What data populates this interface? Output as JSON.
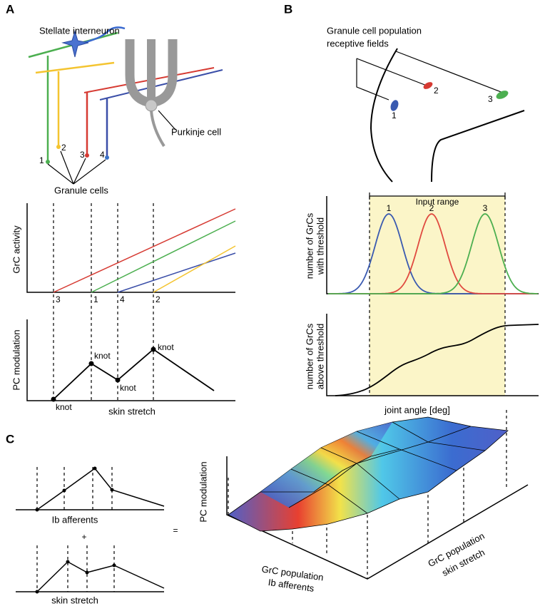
{
  "panels": {
    "A": {
      "label": "A",
      "stellate": "Stellate interneuron",
      "purkinje": "Purkinje cell",
      "granule_cells": "Granule cells",
      "cell_numbers": [
        "1",
        "2",
        "3",
        "4"
      ],
      "activity_ylabel": "GrC activity",
      "threshold_labels": [
        "3",
        "1",
        "4",
        "2"
      ],
      "modulation_ylabel": "PC modulation",
      "xlabel": "skin stretch",
      "knots": [
        "knot",
        "knot",
        "knot",
        "knot"
      ]
    },
    "B": {
      "label": "B",
      "receptive_fields": [
        "Granule cell population",
        "receptive fields"
      ],
      "field_numbers": [
        "1",
        "2",
        "3"
      ],
      "input_range": "Input range",
      "threshold_ylabel": [
        "number of GrCs",
        "with threshold"
      ],
      "curve_numbers": [
        "1",
        "2",
        "3"
      ],
      "above_ylabel": [
        "number of GrCs",
        "above threshold"
      ],
      "xlabel": "joint angle [deg]"
    },
    "C": {
      "label": "C",
      "top_xlabel": "Ib afferents",
      "plus": "+",
      "bottom_xlabel": "skin stretch",
      "equals": "=",
      "zlabel": "PC modulation",
      "axis1": [
        "GrC population",
        "Ib afferents"
      ],
      "axis2": [
        "GrC population",
        "skin stretch"
      ]
    }
  }
}
